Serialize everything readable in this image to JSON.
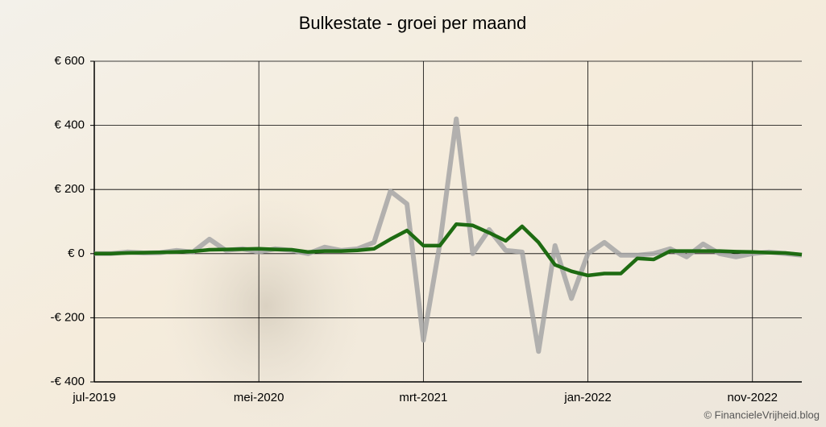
{
  "chart_data": {
    "type": "line",
    "title": "Bulkestate - groei per maand",
    "categories": [
      "jul-2019",
      null,
      null,
      null,
      null,
      null,
      null,
      null,
      null,
      null,
      "mei-2020",
      null,
      null,
      null,
      null,
      null,
      null,
      null,
      null,
      null,
      "mrt-2021",
      null,
      null,
      null,
      null,
      null,
      null,
      null,
      null,
      null,
      "jan-2022",
      null,
      null,
      null,
      null,
      null,
      null,
      null,
      null,
      null,
      "nov-2022",
      null,
      null,
      null
    ],
    "series": [
      {
        "color": "#a6a6a6",
        "values": [
          0,
          0,
          5,
          2,
          3,
          10,
          5,
          45,
          10,
          15,
          5,
          15,
          10,
          0,
          20,
          10,
          15,
          35,
          195,
          155,
          -270,
          30,
          420,
          0,
          75,
          10,
          5,
          -305,
          25,
          -140,
          0,
          35,
          -5,
          -5,
          0,
          15,
          -10,
          30,
          0,
          -10,
          0,
          5,
          0,
          -5
        ]
      },
      {
        "color": "#1e6b12",
        "values": [
          0,
          0,
          2,
          3,
          4,
          5,
          7,
          12,
          13,
          14,
          15,
          13,
          12,
          5,
          8,
          8,
          10,
          15,
          45,
          72,
          25,
          25,
          92,
          88,
          65,
          40,
          85,
          35,
          -35,
          -55,
          -68,
          -62,
          -62,
          -15,
          -18,
          8,
          8,
          8,
          8,
          6,
          5,
          3,
          2,
          -3
        ]
      }
    ],
    "ylim": [
      -400,
      600
    ],
    "yticks": [
      {
        "value": -400,
        "label": "-€ 400"
      },
      {
        "value": -200,
        "label": "-€ 200"
      },
      {
        "value": 0,
        "label": "€ 0"
      },
      {
        "value": 200,
        "label": "€ 200"
      },
      {
        "value": 400,
        "label": "€ 400"
      },
      {
        "value": 600,
        "label": "€ 600"
      }
    ],
    "grid": true,
    "source": "© FinancieleVrijheid.blog"
  }
}
